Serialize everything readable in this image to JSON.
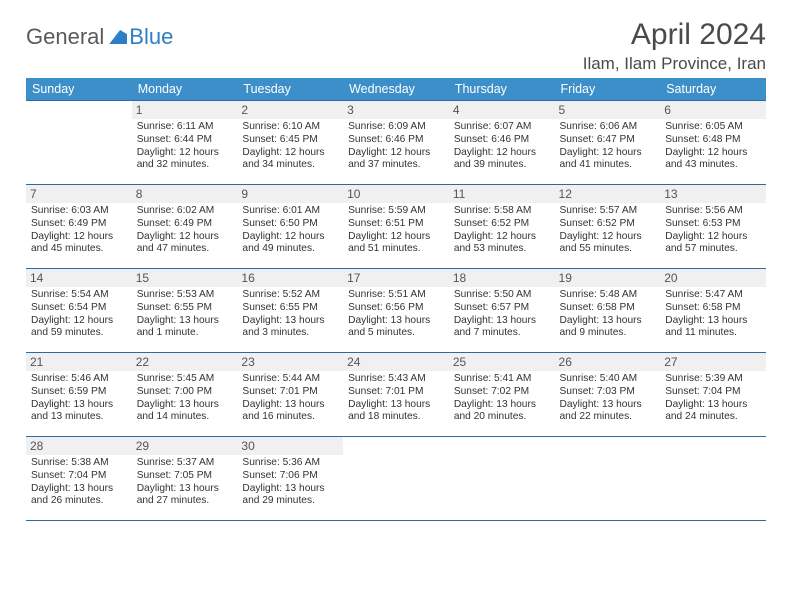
{
  "logo": {
    "text1": "General",
    "text2": "Blue"
  },
  "header": {
    "month_title": "April 2024",
    "location": "Ilam, Ilam Province, Iran"
  },
  "colors": {
    "header_bg": "#3d8fc9",
    "header_text": "#ffffff",
    "row_border": "#2d6a9e",
    "daynum_bg": "#f0f0f0",
    "body_text": "#333333",
    "logo_gray": "#5a5a5a",
    "logo_blue": "#2d7fc3"
  },
  "day_headers": [
    "Sunday",
    "Monday",
    "Tuesday",
    "Wednesday",
    "Thursday",
    "Friday",
    "Saturday"
  ],
  "weeks": [
    [
      null,
      {
        "n": "1",
        "sr": "6:11 AM",
        "ss": "6:44 PM",
        "dl": "12 hours and 32 minutes."
      },
      {
        "n": "2",
        "sr": "6:10 AM",
        "ss": "6:45 PM",
        "dl": "12 hours and 34 minutes."
      },
      {
        "n": "3",
        "sr": "6:09 AM",
        "ss": "6:46 PM",
        "dl": "12 hours and 37 minutes."
      },
      {
        "n": "4",
        "sr": "6:07 AM",
        "ss": "6:46 PM",
        "dl": "12 hours and 39 minutes."
      },
      {
        "n": "5",
        "sr": "6:06 AM",
        "ss": "6:47 PM",
        "dl": "12 hours and 41 minutes."
      },
      {
        "n": "6",
        "sr": "6:05 AM",
        "ss": "6:48 PM",
        "dl": "12 hours and 43 minutes."
      }
    ],
    [
      {
        "n": "7",
        "sr": "6:03 AM",
        "ss": "6:49 PM",
        "dl": "12 hours and 45 minutes."
      },
      {
        "n": "8",
        "sr": "6:02 AM",
        "ss": "6:49 PM",
        "dl": "12 hours and 47 minutes."
      },
      {
        "n": "9",
        "sr": "6:01 AM",
        "ss": "6:50 PM",
        "dl": "12 hours and 49 minutes."
      },
      {
        "n": "10",
        "sr": "5:59 AM",
        "ss": "6:51 PM",
        "dl": "12 hours and 51 minutes."
      },
      {
        "n": "11",
        "sr": "5:58 AM",
        "ss": "6:52 PM",
        "dl": "12 hours and 53 minutes."
      },
      {
        "n": "12",
        "sr": "5:57 AM",
        "ss": "6:52 PM",
        "dl": "12 hours and 55 minutes."
      },
      {
        "n": "13",
        "sr": "5:56 AM",
        "ss": "6:53 PM",
        "dl": "12 hours and 57 minutes."
      }
    ],
    [
      {
        "n": "14",
        "sr": "5:54 AM",
        "ss": "6:54 PM",
        "dl": "12 hours and 59 minutes."
      },
      {
        "n": "15",
        "sr": "5:53 AM",
        "ss": "6:55 PM",
        "dl": "13 hours and 1 minute."
      },
      {
        "n": "16",
        "sr": "5:52 AM",
        "ss": "6:55 PM",
        "dl": "13 hours and 3 minutes."
      },
      {
        "n": "17",
        "sr": "5:51 AM",
        "ss": "6:56 PM",
        "dl": "13 hours and 5 minutes."
      },
      {
        "n": "18",
        "sr": "5:50 AM",
        "ss": "6:57 PM",
        "dl": "13 hours and 7 minutes."
      },
      {
        "n": "19",
        "sr": "5:48 AM",
        "ss": "6:58 PM",
        "dl": "13 hours and 9 minutes."
      },
      {
        "n": "20",
        "sr": "5:47 AM",
        "ss": "6:58 PM",
        "dl": "13 hours and 11 minutes."
      }
    ],
    [
      {
        "n": "21",
        "sr": "5:46 AM",
        "ss": "6:59 PM",
        "dl": "13 hours and 13 minutes."
      },
      {
        "n": "22",
        "sr": "5:45 AM",
        "ss": "7:00 PM",
        "dl": "13 hours and 14 minutes."
      },
      {
        "n": "23",
        "sr": "5:44 AM",
        "ss": "7:01 PM",
        "dl": "13 hours and 16 minutes."
      },
      {
        "n": "24",
        "sr": "5:43 AM",
        "ss": "7:01 PM",
        "dl": "13 hours and 18 minutes."
      },
      {
        "n": "25",
        "sr": "5:41 AM",
        "ss": "7:02 PM",
        "dl": "13 hours and 20 minutes."
      },
      {
        "n": "26",
        "sr": "5:40 AM",
        "ss": "7:03 PM",
        "dl": "13 hours and 22 minutes."
      },
      {
        "n": "27",
        "sr": "5:39 AM",
        "ss": "7:04 PM",
        "dl": "13 hours and 24 minutes."
      }
    ],
    [
      {
        "n": "28",
        "sr": "5:38 AM",
        "ss": "7:04 PM",
        "dl": "13 hours and 26 minutes."
      },
      {
        "n": "29",
        "sr": "5:37 AM",
        "ss": "7:05 PM",
        "dl": "13 hours and 27 minutes."
      },
      {
        "n": "30",
        "sr": "5:36 AM",
        "ss": "7:06 PM",
        "dl": "13 hours and 29 minutes."
      },
      null,
      null,
      null,
      null
    ]
  ],
  "labels": {
    "sunrise": "Sunrise: ",
    "sunset": "Sunset: ",
    "daylight": "Daylight: "
  }
}
